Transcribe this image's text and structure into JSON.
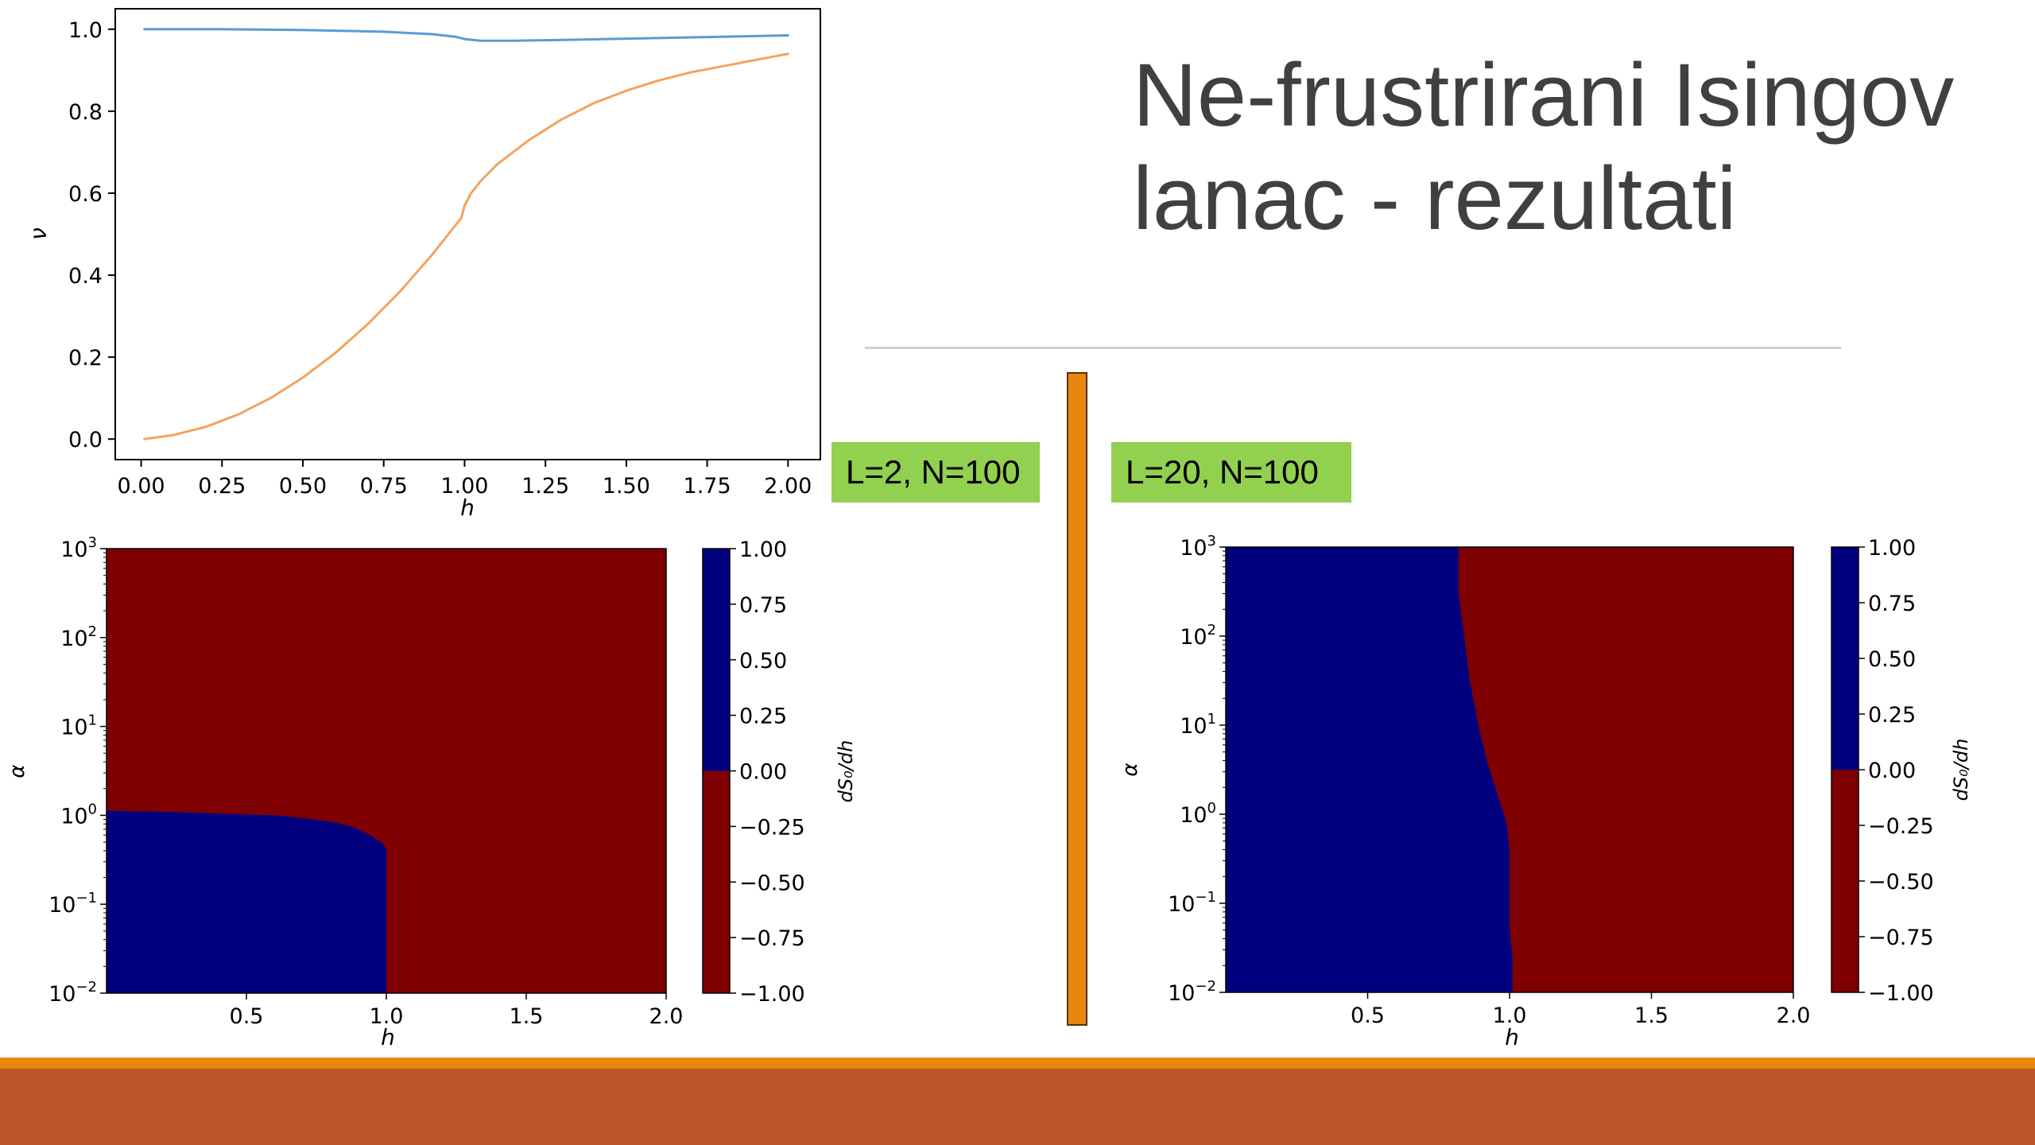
{
  "slide": {
    "title_line1": "Ne-frustrirani Isingov",
    "title_line2": "lanac - rezultati",
    "label_left": "L=2, N=100",
    "label_right": "L=20, N=100"
  },
  "colors": {
    "title": "#404040",
    "label_bg": "#92d050",
    "divider": "#e8870e",
    "band_accent": "#e8870e",
    "band_main": "#ba5629",
    "series_blue": "#5b9bd5",
    "series_orange": "#f5a25d",
    "map_positive": "#00007f",
    "map_negative": "#7f0000"
  },
  "chart_data": [
    {
      "type": "line",
      "xlabel": "h",
      "ylabel": "ν",
      "xlim": [
        -0.08,
        2.1
      ],
      "ylim": [
        -0.05,
        1.05
      ],
      "xticks": [
        "0.00",
        "0.25",
        "0.50",
        "0.75",
        "1.00",
        "1.25",
        "1.50",
        "1.75",
        "2.00"
      ],
      "yticks": [
        "0.0",
        "0.2",
        "0.4",
        "0.6",
        "0.8",
        "1.0"
      ],
      "grid": false,
      "series": [
        {
          "color": "#5b9bd5",
          "x": [
            0.01,
            0.25,
            0.5,
            0.75,
            0.9,
            0.97,
            1.0,
            1.05,
            1.15,
            1.3,
            1.5,
            1.75,
            2.0
          ],
          "y": [
            1.0,
            1.0,
            0.998,
            0.994,
            0.988,
            0.982,
            0.976,
            0.972,
            0.972,
            0.974,
            0.977,
            0.981,
            0.985
          ]
        },
        {
          "color": "#f5a25d",
          "x": [
            0.01,
            0.1,
            0.2,
            0.3,
            0.4,
            0.5,
            0.6,
            0.7,
            0.8,
            0.9,
            0.95,
            0.99,
            1.0,
            1.02,
            1.05,
            1.1,
            1.2,
            1.3,
            1.4,
            1.5,
            1.6,
            1.7,
            1.8,
            1.9,
            2.0
          ],
          "y": [
            0.0,
            0.01,
            0.03,
            0.06,
            0.1,
            0.15,
            0.21,
            0.28,
            0.36,
            0.45,
            0.5,
            0.54,
            0.57,
            0.6,
            0.63,
            0.67,
            0.73,
            0.78,
            0.82,
            0.85,
            0.875,
            0.895,
            0.91,
            0.925,
            0.94
          ]
        }
      ]
    },
    {
      "type": "heatmap",
      "panel": "L=2, N=100",
      "xlabel": "h",
      "ylabel": "α",
      "xlim": [
        0.0,
        2.0
      ],
      "ylim_log10": [
        -2,
        3
      ],
      "xticks": [
        "0.5",
        "1.0",
        "1.5",
        "2.0"
      ],
      "yticks_exp": [
        "−2",
        "−1",
        "0",
        "1",
        "2",
        "3"
      ],
      "colorbar_label": "dS₀/dh",
      "colorbar_ticks": [
        "1.00",
        "0.75",
        "0.50",
        "0.25",
        "0.00",
        "−0.25",
        "−0.50",
        "−0.75",
        "−1.00"
      ],
      "colorbar_range": [
        -1.0,
        1.0
      ],
      "values_description_region": "value 1 (blue) below boundary, −1 (dark red) above",
      "boundary_h": [
        0.0,
        0.2,
        0.4,
        0.6,
        0.7,
        0.8,
        0.88,
        0.94,
        0.98,
        1.0,
        1.0
      ],
      "boundary_log10_alpha": [
        0.05,
        0.04,
        0.02,
        0.0,
        -0.03,
        -0.07,
        -0.13,
        -0.22,
        -0.3,
        -0.37,
        -2.0
      ]
    },
    {
      "type": "heatmap",
      "panel": "L=20, N=100",
      "xlabel": "h",
      "ylabel": "α",
      "xlim": [
        0.0,
        2.0
      ],
      "ylim_log10": [
        -2,
        3
      ],
      "xticks": [
        "0.5",
        "1.0",
        "1.5",
        "2.0"
      ],
      "yticks_exp": [
        "−2",
        "−1",
        "0",
        "1",
        "2",
        "3"
      ],
      "colorbar_label": "dS₀/dh",
      "colorbar_ticks": [
        "1.00",
        "0.75",
        "0.50",
        "0.25",
        "0.00",
        "−0.25",
        "−0.50",
        "−0.75",
        "−1.00"
      ],
      "colorbar_range": [
        -1.0,
        1.0
      ],
      "boundary_h": [
        0.82,
        0.82,
        0.84,
        0.86,
        0.89,
        0.92,
        0.96,
        0.99,
        1.0,
        1.0,
        1.01,
        1.01
      ],
      "boundary_log10_alpha": [
        3.0,
        2.5,
        2.0,
        1.5,
        1.0,
        0.6,
        0.2,
        -0.1,
        -0.4,
        -1.3,
        -1.6,
        -2.0
      ]
    }
  ]
}
